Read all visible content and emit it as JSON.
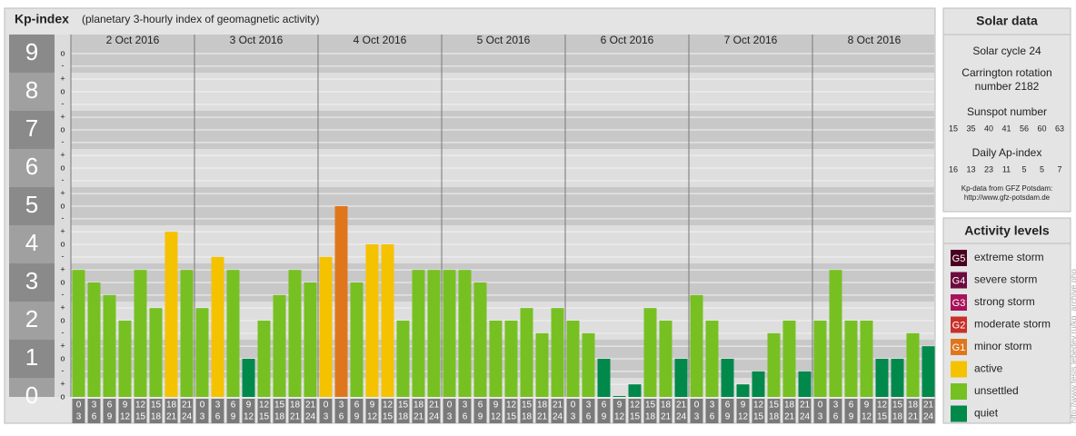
{
  "chart_data": {
    "type": "bar",
    "title": "Kp-index",
    "subtitle": "(planetary 3-hourly index of geomagnetic activity)",
    "ylim": [
      0,
      9
    ],
    "yticks": [
      0,
      1,
      2,
      3,
      4,
      5,
      6,
      7,
      8,
      9
    ],
    "yminor": [
      {
        "value": 0,
        "label": "o"
      },
      {
        "value": 0.33,
        "label": "+"
      },
      {
        "value": 0.67,
        "label": "-"
      },
      {
        "value": 1,
        "label": "o"
      },
      {
        "value": 1.33,
        "label": "+"
      },
      {
        "value": 1.67,
        "label": "-"
      },
      {
        "value": 2,
        "label": "o"
      },
      {
        "value": 2.33,
        "label": "+"
      },
      {
        "value": 2.67,
        "label": "-"
      },
      {
        "value": 3,
        "label": "o"
      },
      {
        "value": 3.33,
        "label": "+"
      },
      {
        "value": 3.67,
        "label": "-"
      },
      {
        "value": 4,
        "label": "o"
      },
      {
        "value": 4.33,
        "label": "+"
      },
      {
        "value": 4.67,
        "label": "-"
      },
      {
        "value": 5,
        "label": "o"
      },
      {
        "value": 5.33,
        "label": "+"
      },
      {
        "value": 5.67,
        "label": "-"
      },
      {
        "value": 6,
        "label": "o"
      },
      {
        "value": 6.33,
        "label": "+"
      },
      {
        "value": 6.67,
        "label": "-"
      },
      {
        "value": 7,
        "label": "o"
      },
      {
        "value": 7.33,
        "label": "+"
      },
      {
        "value": 7.67,
        "label": "-"
      },
      {
        "value": 8,
        "label": "o"
      },
      {
        "value": 8.33,
        "label": "+"
      },
      {
        "value": 8.67,
        "label": "-"
      },
      {
        "value": 9,
        "label": "o"
      }
    ],
    "slots": [
      {
        "from": "0",
        "to": "3"
      },
      {
        "from": "3",
        "to": "6"
      },
      {
        "from": "6",
        "to": "9"
      },
      {
        "from": "9",
        "to": "12"
      },
      {
        "from": "12",
        "to": "15"
      },
      {
        "from": "15",
        "to": "18"
      },
      {
        "from": "18",
        "to": "21"
      },
      {
        "from": "21",
        "to": "24"
      }
    ],
    "days": [
      {
        "date": "2 Oct 2016",
        "values": [
          3.33,
          3,
          2.67,
          2,
          3.33,
          2.33,
          4.33,
          3.33
        ],
        "colors": [
          "#77c022",
          "#77c022",
          "#77c022",
          "#77c022",
          "#77c022",
          "#77c022",
          "#f5c200",
          "#77c022"
        ]
      },
      {
        "date": "3 Oct 2016",
        "values": [
          2.33,
          3.67,
          3.33,
          1,
          2,
          2.67,
          3.33,
          3
        ],
        "colors": [
          "#77c022",
          "#f5c200",
          "#77c022",
          "#00894a",
          "#77c022",
          "#77c022",
          "#77c022",
          "#77c022"
        ]
      },
      {
        "date": "4 Oct 2016",
        "values": [
          3.67,
          5,
          3,
          4,
          4,
          2,
          3.33,
          3.33
        ],
        "colors": [
          "#f5c200",
          "#e0761c",
          "#77c022",
          "#f5c200",
          "#f5c200",
          "#77c022",
          "#77c022",
          "#77c022"
        ]
      },
      {
        "date": "5 Oct 2016",
        "values": [
          3.33,
          3.33,
          3,
          2,
          2,
          2.33,
          1.67,
          2.33
        ],
        "colors": [
          "#77c022",
          "#77c022",
          "#77c022",
          "#77c022",
          "#77c022",
          "#77c022",
          "#77c022",
          "#77c022"
        ]
      },
      {
        "date": "6 Oct 2016",
        "values": [
          2,
          1.67,
          1,
          0,
          0.33,
          2.33,
          2,
          1
        ],
        "colors": [
          "#77c022",
          "#77c022",
          "#00894a",
          "#00894a",
          "#00894a",
          "#77c022",
          "#77c022",
          "#00894a"
        ]
      },
      {
        "date": "7 Oct 2016",
        "values": [
          2.67,
          2,
          1,
          0.33,
          0.67,
          1.67,
          2,
          0.67
        ],
        "colors": [
          "#77c022",
          "#77c022",
          "#00894a",
          "#00894a",
          "#00894a",
          "#77c022",
          "#77c022",
          "#00894a"
        ]
      },
      {
        "date": "8 Oct 2016",
        "values": [
          2,
          3.33,
          2,
          2,
          1,
          1,
          1.67,
          1.33
        ],
        "colors": [
          "#77c022",
          "#77c022",
          "#77c022",
          "#77c022",
          "#00894a",
          "#00894a",
          "#77c022",
          "#00894a"
        ]
      }
    ],
    "solar": {
      "title": "Solar data",
      "cycle": "Solar cycle 24",
      "rotation": [
        "Carrington rotation",
        "number 2182"
      ],
      "sunspot_title": "Sunspot number",
      "sunspot": [
        15,
        35,
        40,
        41,
        56,
        60,
        63
      ],
      "ap_title": "Daily Ap-index",
      "ap": [
        16,
        13,
        23,
        11,
        5,
        5,
        7
      ],
      "source": [
        "Kp-data from GFZ Potsdam:",
        "http://www.gfz-potsdam.de"
      ]
    },
    "legend": {
      "title": "Activity levels",
      "items": [
        {
          "badge": "G5",
          "label": "extreme storm",
          "color": "#4a0020"
        },
        {
          "badge": "G4",
          "label": "severe storm",
          "color": "#6d0a3e"
        },
        {
          "badge": "G3",
          "label": "strong storm",
          "color": "#a8135a"
        },
        {
          "badge": "G2",
          "label": "moderate storm",
          "color": "#c8302a"
        },
        {
          "badge": "G1",
          "label": "minor storm",
          "color": "#e0761c"
        },
        {
          "label": "active",
          "color": "#f5c200"
        },
        {
          "label": "unsettled",
          "color": "#77c022"
        },
        {
          "label": "quiet",
          "color": "#00894a"
        }
      ]
    },
    "credit": "http://www.tesis.lebedev.ru/kp_archive.php"
  }
}
